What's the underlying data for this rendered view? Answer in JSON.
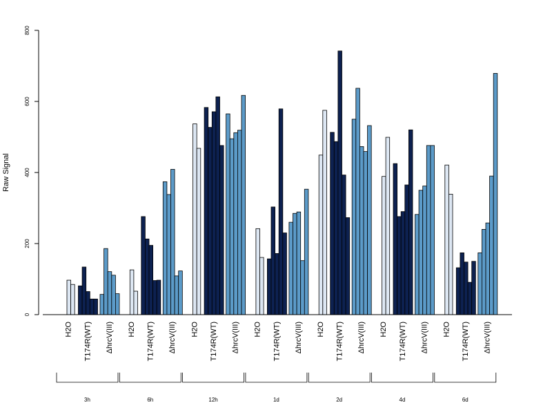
{
  "chart_data": {
    "type": "bar",
    "title": "",
    "xlabel": "",
    "ylabel": "Raw Signal",
    "ylim": [
      0,
      800
    ],
    "yticks": [
      0,
      200,
      400,
      600,
      800
    ],
    "grid": false,
    "legend": "none",
    "timepoints": [
      "3h",
      "6h",
      "12h",
      "1d",
      "2d",
      "4d",
      "6d"
    ],
    "group_labels": [
      "H2O",
      "T174R(WT)",
      "ΔhrcV(III)"
    ],
    "colors": {
      "H2O": "#dde7f3",
      "T174R(WT)": "#0d2150",
      "ΔhrcV(III)": "#5c9bc9"
    },
    "data": [
      {
        "timepoint": "3h",
        "groups": [
          {
            "name": "H2O",
            "values": [
              97,
              85
            ]
          },
          {
            "name": "T174R(WT)",
            "values": [
              81,
              134,
              65,
              44,
              44
            ]
          },
          {
            "name": "ΔhrcV(III)",
            "values": [
              57,
              186,
              121,
              111,
              59
            ]
          }
        ]
      },
      {
        "timepoint": "6h",
        "groups": [
          {
            "name": "H2O",
            "values": [
              126,
              66
            ]
          },
          {
            "name": "T174R(WT)",
            "values": [
              276,
              213,
              195,
              96,
              97
            ]
          },
          {
            "name": "ΔhrcV(III)",
            "values": [
              374,
              338,
              409,
              109,
              123
            ]
          }
        ]
      },
      {
        "timepoint": "12h",
        "groups": [
          {
            "name": "H2O",
            "values": [
              537,
              468
            ]
          },
          {
            "name": "T174R(WT)",
            "values": [
              583,
              527,
              571,
              613,
              476
            ]
          },
          {
            "name": "ΔhrcV(III)",
            "values": [
              565,
              495,
              512,
              519,
              617
            ]
          }
        ]
      },
      {
        "timepoint": "1d",
        "groups": [
          {
            "name": "H2O",
            "values": [
              242,
              161
            ]
          },
          {
            "name": "T174R(WT)",
            "values": [
              157,
              303,
              172,
              579,
              230
            ]
          },
          {
            "name": "ΔhrcV(III)",
            "values": [
              260,
              285,
              289,
              152,
              353
            ]
          }
        ]
      },
      {
        "timepoint": "2d",
        "groups": [
          {
            "name": "H2O",
            "values": [
              449,
              575
            ]
          },
          {
            "name": "T174R(WT)",
            "values": [
              513,
              487,
              742,
              393,
              273
            ]
          },
          {
            "name": "ΔhrcV(III)",
            "values": [
              550,
              637,
              473,
              459,
              532
            ]
          }
        ]
      },
      {
        "timepoint": "4d",
        "groups": [
          {
            "name": "H2O",
            "values": [
              389,
              499
            ]
          },
          {
            "name": "T174R(WT)",
            "values": [
              425,
              276,
              290,
              365,
              520
            ]
          },
          {
            "name": "ΔhrcV(III)",
            "values": [
              282,
              350,
              362,
              476,
              476
            ]
          }
        ]
      },
      {
        "timepoint": "6d",
        "groups": [
          {
            "name": "H2O",
            "values": [
              421,
              339
            ]
          },
          {
            "name": "T174R(WT)",
            "values": [
              132,
              174,
              148,
              91,
              150
            ]
          },
          {
            "name": "ΔhrcV(III)",
            "values": [
              174,
              240,
              258,
              390,
              679
            ]
          }
        ]
      }
    ]
  }
}
